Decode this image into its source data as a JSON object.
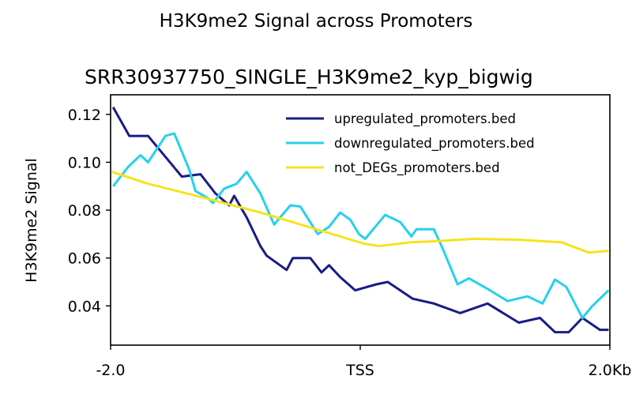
{
  "chart_data": {
    "type": "line",
    "title": "H3K9me2 Signal across Promoters",
    "subtitle": "SRR30937750_SINGLE_H3K9me2_kyp_bigwig",
    "xlabel": "",
    "ylabel": "H3K9me2 Signal",
    "xlim": [
      -2.0,
      2.0
    ],
    "ylim": [
      0.0236,
      0.1282
    ],
    "x_units": "kb relative to TSS",
    "xticks": [
      {
        "value": -2.0,
        "label": "-2.0"
      },
      {
        "value": 0,
        "label": "TSS"
      },
      {
        "value": 2.0,
        "label": "2.0Kb"
      }
    ],
    "yticks": [
      {
        "value": 0.04,
        "label": "0.04"
      },
      {
        "value": 0.06,
        "label": "0.06"
      },
      {
        "value": 0.08,
        "label": "0.08"
      },
      {
        "value": 0.1,
        "label": "0.10"
      },
      {
        "value": 0.12,
        "label": "0.12"
      }
    ],
    "grid": false,
    "legend_position": "top-right",
    "series": [
      {
        "name": "upregulated_promoters.bed",
        "color": "#1b1b86",
        "x": [
          -1.98,
          -1.85,
          -1.7,
          -1.58,
          -1.43,
          -1.28,
          -1.16,
          -1.05,
          -1.01,
          -0.91,
          -0.8,
          -0.75,
          -0.59,
          -0.54,
          -0.4,
          -0.31,
          -0.25,
          -0.16,
          -0.04,
          0.13,
          0.22,
          0.42,
          0.59,
          0.8,
          1.02,
          1.27,
          1.44,
          1.56,
          1.67,
          1.78,
          1.92,
          1.99
        ],
        "y": [
          0.123,
          0.111,
          0.111,
          0.1035,
          0.094,
          0.095,
          0.087,
          0.082,
          0.086,
          0.077,
          0.065,
          0.061,
          0.055,
          0.06,
          0.06,
          0.054,
          0.057,
          0.052,
          0.0465,
          0.049,
          0.05,
          0.043,
          0.041,
          0.037,
          0.041,
          0.033,
          0.035,
          0.029,
          0.029,
          0.035,
          0.03,
          0.03
        ]
      },
      {
        "name": "downregulated_promoters.bed",
        "color": "#26d0ee",
        "x": [
          -1.98,
          -1.86,
          -1.76,
          -1.7,
          -1.56,
          -1.49,
          -1.43,
          -1.37,
          -1.32,
          -1.22,
          -1.18,
          -1.09,
          -0.99,
          -0.91,
          -0.8,
          -0.69,
          -0.56,
          -0.48,
          -0.34,
          -0.25,
          -0.16,
          -0.08,
          -0.01,
          0.04,
          0.2,
          0.32,
          0.41,
          0.45,
          0.59,
          0.66,
          0.78,
          0.87,
          1.04,
          1.18,
          1.34,
          1.46,
          1.56,
          1.65,
          1.78,
          1.86,
          1.99
        ],
        "y": [
          0.09,
          0.098,
          0.103,
          0.1,
          0.111,
          0.112,
          0.1045,
          0.097,
          0.088,
          0.085,
          0.083,
          0.089,
          0.091,
          0.096,
          0.087,
          0.074,
          0.082,
          0.0815,
          0.07,
          0.073,
          0.079,
          0.076,
          0.07,
          0.068,
          0.078,
          0.075,
          0.069,
          0.072,
          0.072,
          0.064,
          0.049,
          0.0515,
          0.0465,
          0.042,
          0.044,
          0.041,
          0.051,
          0.048,
          0.035,
          0.04,
          0.0465
        ]
      },
      {
        "name": "not_DEGs_promoters.bed",
        "color": "#f6e31e",
        "x": [
          -1.99,
          -1.7,
          -1.24,
          -0.8,
          -0.35,
          0.03,
          0.15,
          0.41,
          0.59,
          0.91,
          1.29,
          1.61,
          1.83,
          1.99
        ],
        "y": [
          0.096,
          0.091,
          0.085,
          0.079,
          0.072,
          0.066,
          0.065,
          0.0666,
          0.067,
          0.068,
          0.0676,
          0.0666,
          0.0623,
          0.063
        ]
      }
    ]
  }
}
